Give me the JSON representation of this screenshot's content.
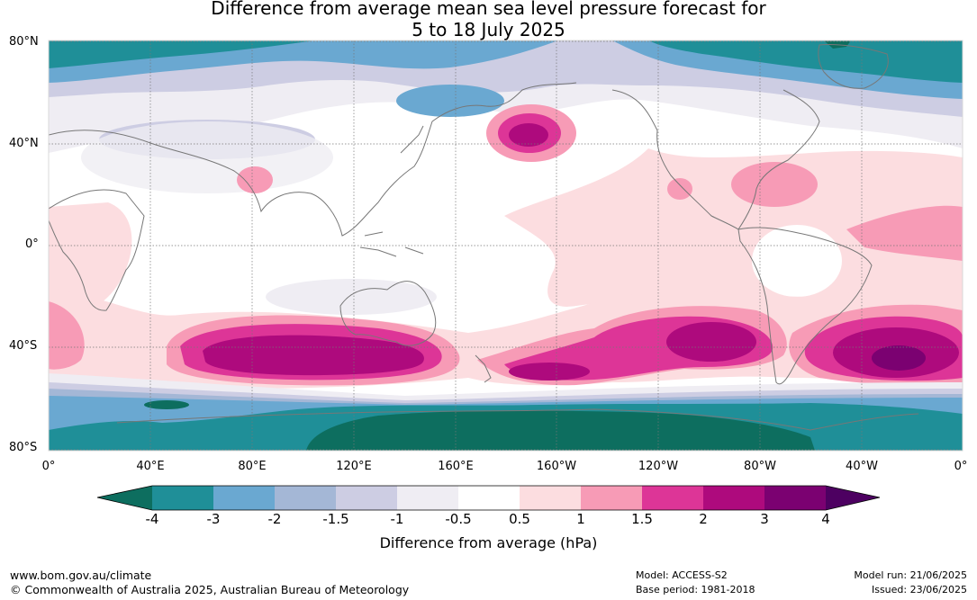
{
  "title_line1": "Difference from average mean sea level pressure forecast for",
  "title_line2": "5 to 18 July 2025",
  "lat_labels": [
    "80°N",
    "40°N",
    "0°",
    "40°S",
    "80°S"
  ],
  "lon_labels": [
    "0°",
    "40°E",
    "80°E",
    "120°E",
    "160°E",
    "160°W",
    "120°W",
    "80°W",
    "40°W",
    "0°"
  ],
  "colorbar": {
    "ticks": [
      "-4",
      "-3",
      "-2",
      "-1.5",
      "-1",
      "-0.5",
      "0.5",
      "1",
      "1.5",
      "2",
      "3",
      "4"
    ],
    "colors": [
      "#0d6e5f",
      "#1f8f98",
      "#6aa8d1",
      "#a4b7d6",
      "#cdcde3",
      "#efedf3",
      "#ffffff",
      "#fcdde0",
      "#f79bb6",
      "#dd3597",
      "#ae0a7d",
      "#7b0171",
      "#4d0061"
    ],
    "title": "Difference from average (hPa)"
  },
  "footer": {
    "website": "www.bom.gov.au/climate",
    "copyright": "© Commonwealth of Australia 2025, Australian Bureau of Meteorology",
    "model": "Model: ACCESS-S2",
    "base_period": "Base period: 1981-2018",
    "model_run": "Model run: 21/06/2025",
    "issued": "Issued: 23/06/2025"
  }
}
